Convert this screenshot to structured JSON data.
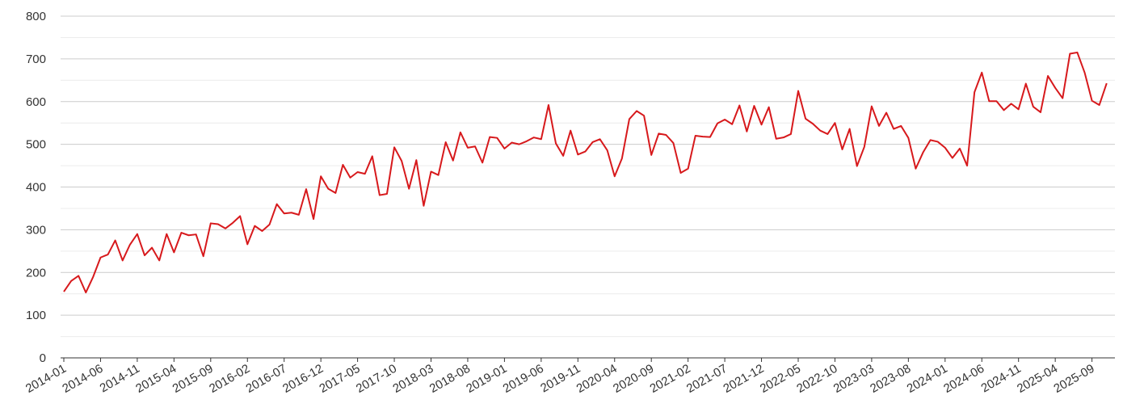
{
  "chart_data": {
    "type": "line",
    "title": "",
    "xlabel": "",
    "ylabel": "",
    "ylim": [
      0,
      800
    ],
    "y_ticks": [
      "0",
      "100",
      "200",
      "300",
      "400",
      "500",
      "600",
      "700",
      "800"
    ],
    "x_start": "2014-01",
    "x_tick_labels": [
      "2014-01",
      "2014-06",
      "2014-11",
      "2015-04",
      "2015-09",
      "2016-02",
      "2016-07",
      "2016-12",
      "2017-05",
      "2017-10",
      "2018-03",
      "2018-08",
      "2019-01",
      "2019-06",
      "2019-11",
      "2020-04",
      "2020-09",
      "2021-02",
      "2021-07",
      "2021-12",
      "2022-05",
      "2022-10",
      "2023-03",
      "2023-08",
      "2024-01",
      "2024-06",
      "2024-11",
      "2025-04",
      "2025-09"
    ],
    "grid": true,
    "legend": "none",
    "series": [
      {
        "color": "#d7191c",
        "values": [
          155,
          180,
          192,
          153,
          190,
          235,
          242,
          275,
          228,
          265,
          290,
          240,
          258,
          228,
          290,
          247,
          293,
          287,
          289,
          238,
          315,
          313,
          303,
          316,
          332,
          266,
          309,
          297,
          312,
          360,
          338,
          340,
          335,
          395,
          325,
          425,
          396,
          386,
          452,
          422,
          435,
          431,
          472,
          381,
          384,
          493,
          461,
          396,
          463,
          356,
          436,
          428,
          505,
          462,
          528,
          492,
          495,
          457,
          517,
          515,
          490,
          504,
          500,
          507,
          516,
          512,
          592,
          502,
          473,
          532,
          476,
          483,
          505,
          512,
          486,
          425,
          467,
          559,
          578,
          567,
          475,
          525,
          522,
          503,
          433,
          443,
          520,
          518,
          517,
          549,
          558,
          547,
          591,
          530,
          590,
          546,
          587,
          513,
          516,
          524,
          625,
          560,
          548,
          532,
          524,
          550,
          488,
          536,
          449,
          494,
          589,
          543,
          574,
          536,
          543,
          515,
          443,
          481,
          510,
          506,
          492,
          468,
          490,
          450,
          622,
          668,
          601,
          601,
          580,
          595,
          582,
          642,
          588,
          575,
          660,
          632,
          608,
          712,
          715,
          668,
          602,
          592,
          643
        ]
      }
    ]
  }
}
